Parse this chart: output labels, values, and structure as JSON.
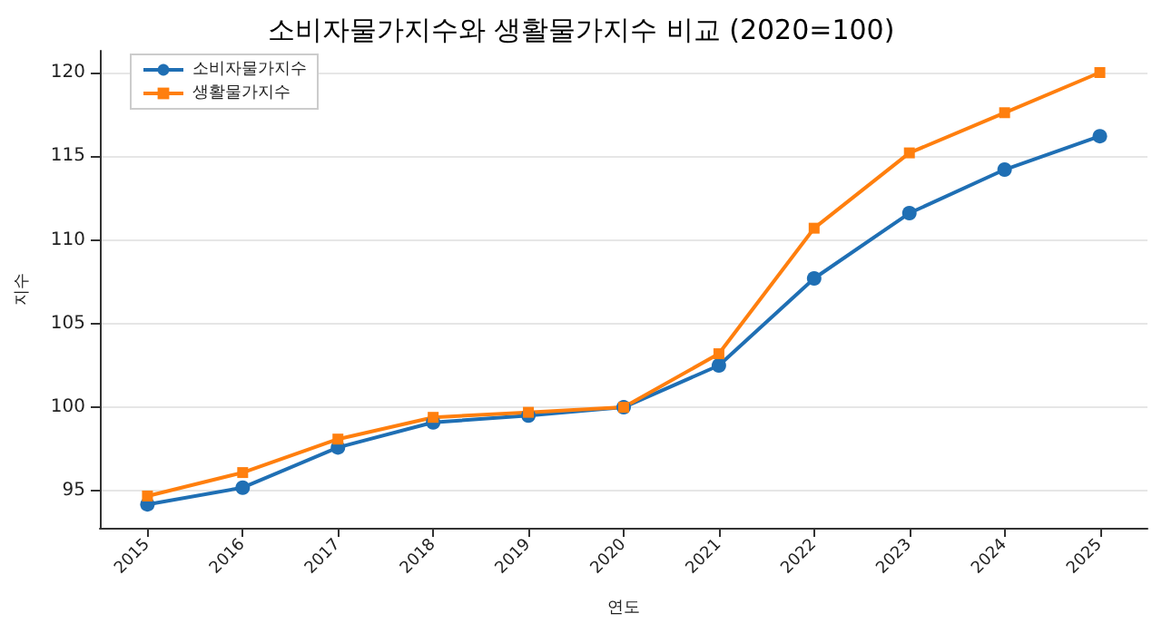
{
  "chart_data": {
    "type": "line",
    "title": "소비자물가지수와 생활물가지수 비교 (2020=100)",
    "xlabel": "연도",
    "ylabel": "지수",
    "categories": [
      "2015",
      "2016",
      "2017",
      "2018",
      "2019",
      "2020",
      "2021",
      "2022",
      "2023",
      "2024",
      "2025"
    ],
    "series": [
      {
        "name": "소비자물가지수",
        "color": "#1f6fb4",
        "marker": "circle",
        "values": [
          94.2,
          95.2,
          97.6,
          99.1,
          99.5,
          100,
          102.5,
          107.7,
          111.6,
          114.2,
          116.2
        ]
      },
      {
        "name": "생활물가지수",
        "color": "#ff7f0e",
        "marker": "square",
        "values": [
          94.7,
          96.1,
          98.1,
          99.4,
          99.7,
          100,
          103.2,
          110.7,
          115.2,
          117.6,
          120
        ]
      }
    ],
    "ylim": [
      92.8,
      121.3
    ],
    "yticks": [
      95,
      100,
      105,
      110,
      115,
      120
    ],
    "grid": "y",
    "legend": "top left"
  }
}
